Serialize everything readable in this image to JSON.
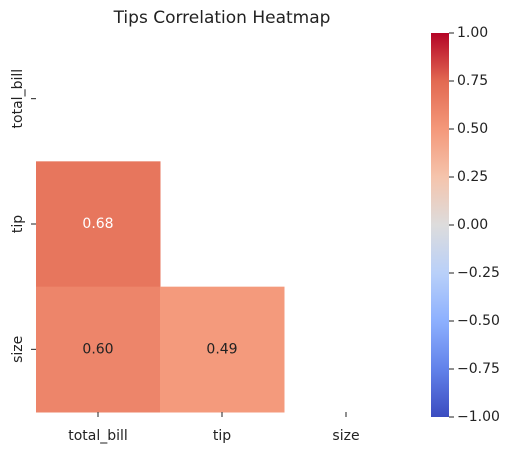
{
  "chart_data": {
    "type": "heatmap",
    "title": "Tips Correlation Heatmap",
    "x_categories": [
      "total_bill",
      "tip",
      "size"
    ],
    "y_categories": [
      "total_bill",
      "tip",
      "size"
    ],
    "values": [
      [
        null,
        null,
        null
      ],
      [
        0.68,
        null,
        null
      ],
      [
        0.6,
        0.49,
        null
      ]
    ],
    "value_labels": [
      [
        null,
        null,
        null
      ],
      [
        "0.68",
        null,
        null
      ],
      [
        "0.60",
        "0.49",
        null
      ]
    ],
    "colormap": "coolwarm",
    "clim": [
      -1,
      1
    ],
    "colorbar_ticks": [
      {
        "value": -1,
        "label": "−1.00"
      },
      {
        "value": -0.75,
        "label": "−0.75"
      },
      {
        "value": -0.5,
        "label": "−0.50"
      },
      {
        "value": -0.25,
        "label": "−0.25"
      },
      {
        "value": 0,
        "label": "0.00"
      },
      {
        "value": 0.25,
        "label": "0.25"
      },
      {
        "value": 0.5,
        "label": "0.50"
      },
      {
        "value": 0.75,
        "label": "0.75"
      },
      {
        "value": 1,
        "label": "1.00"
      }
    ]
  }
}
